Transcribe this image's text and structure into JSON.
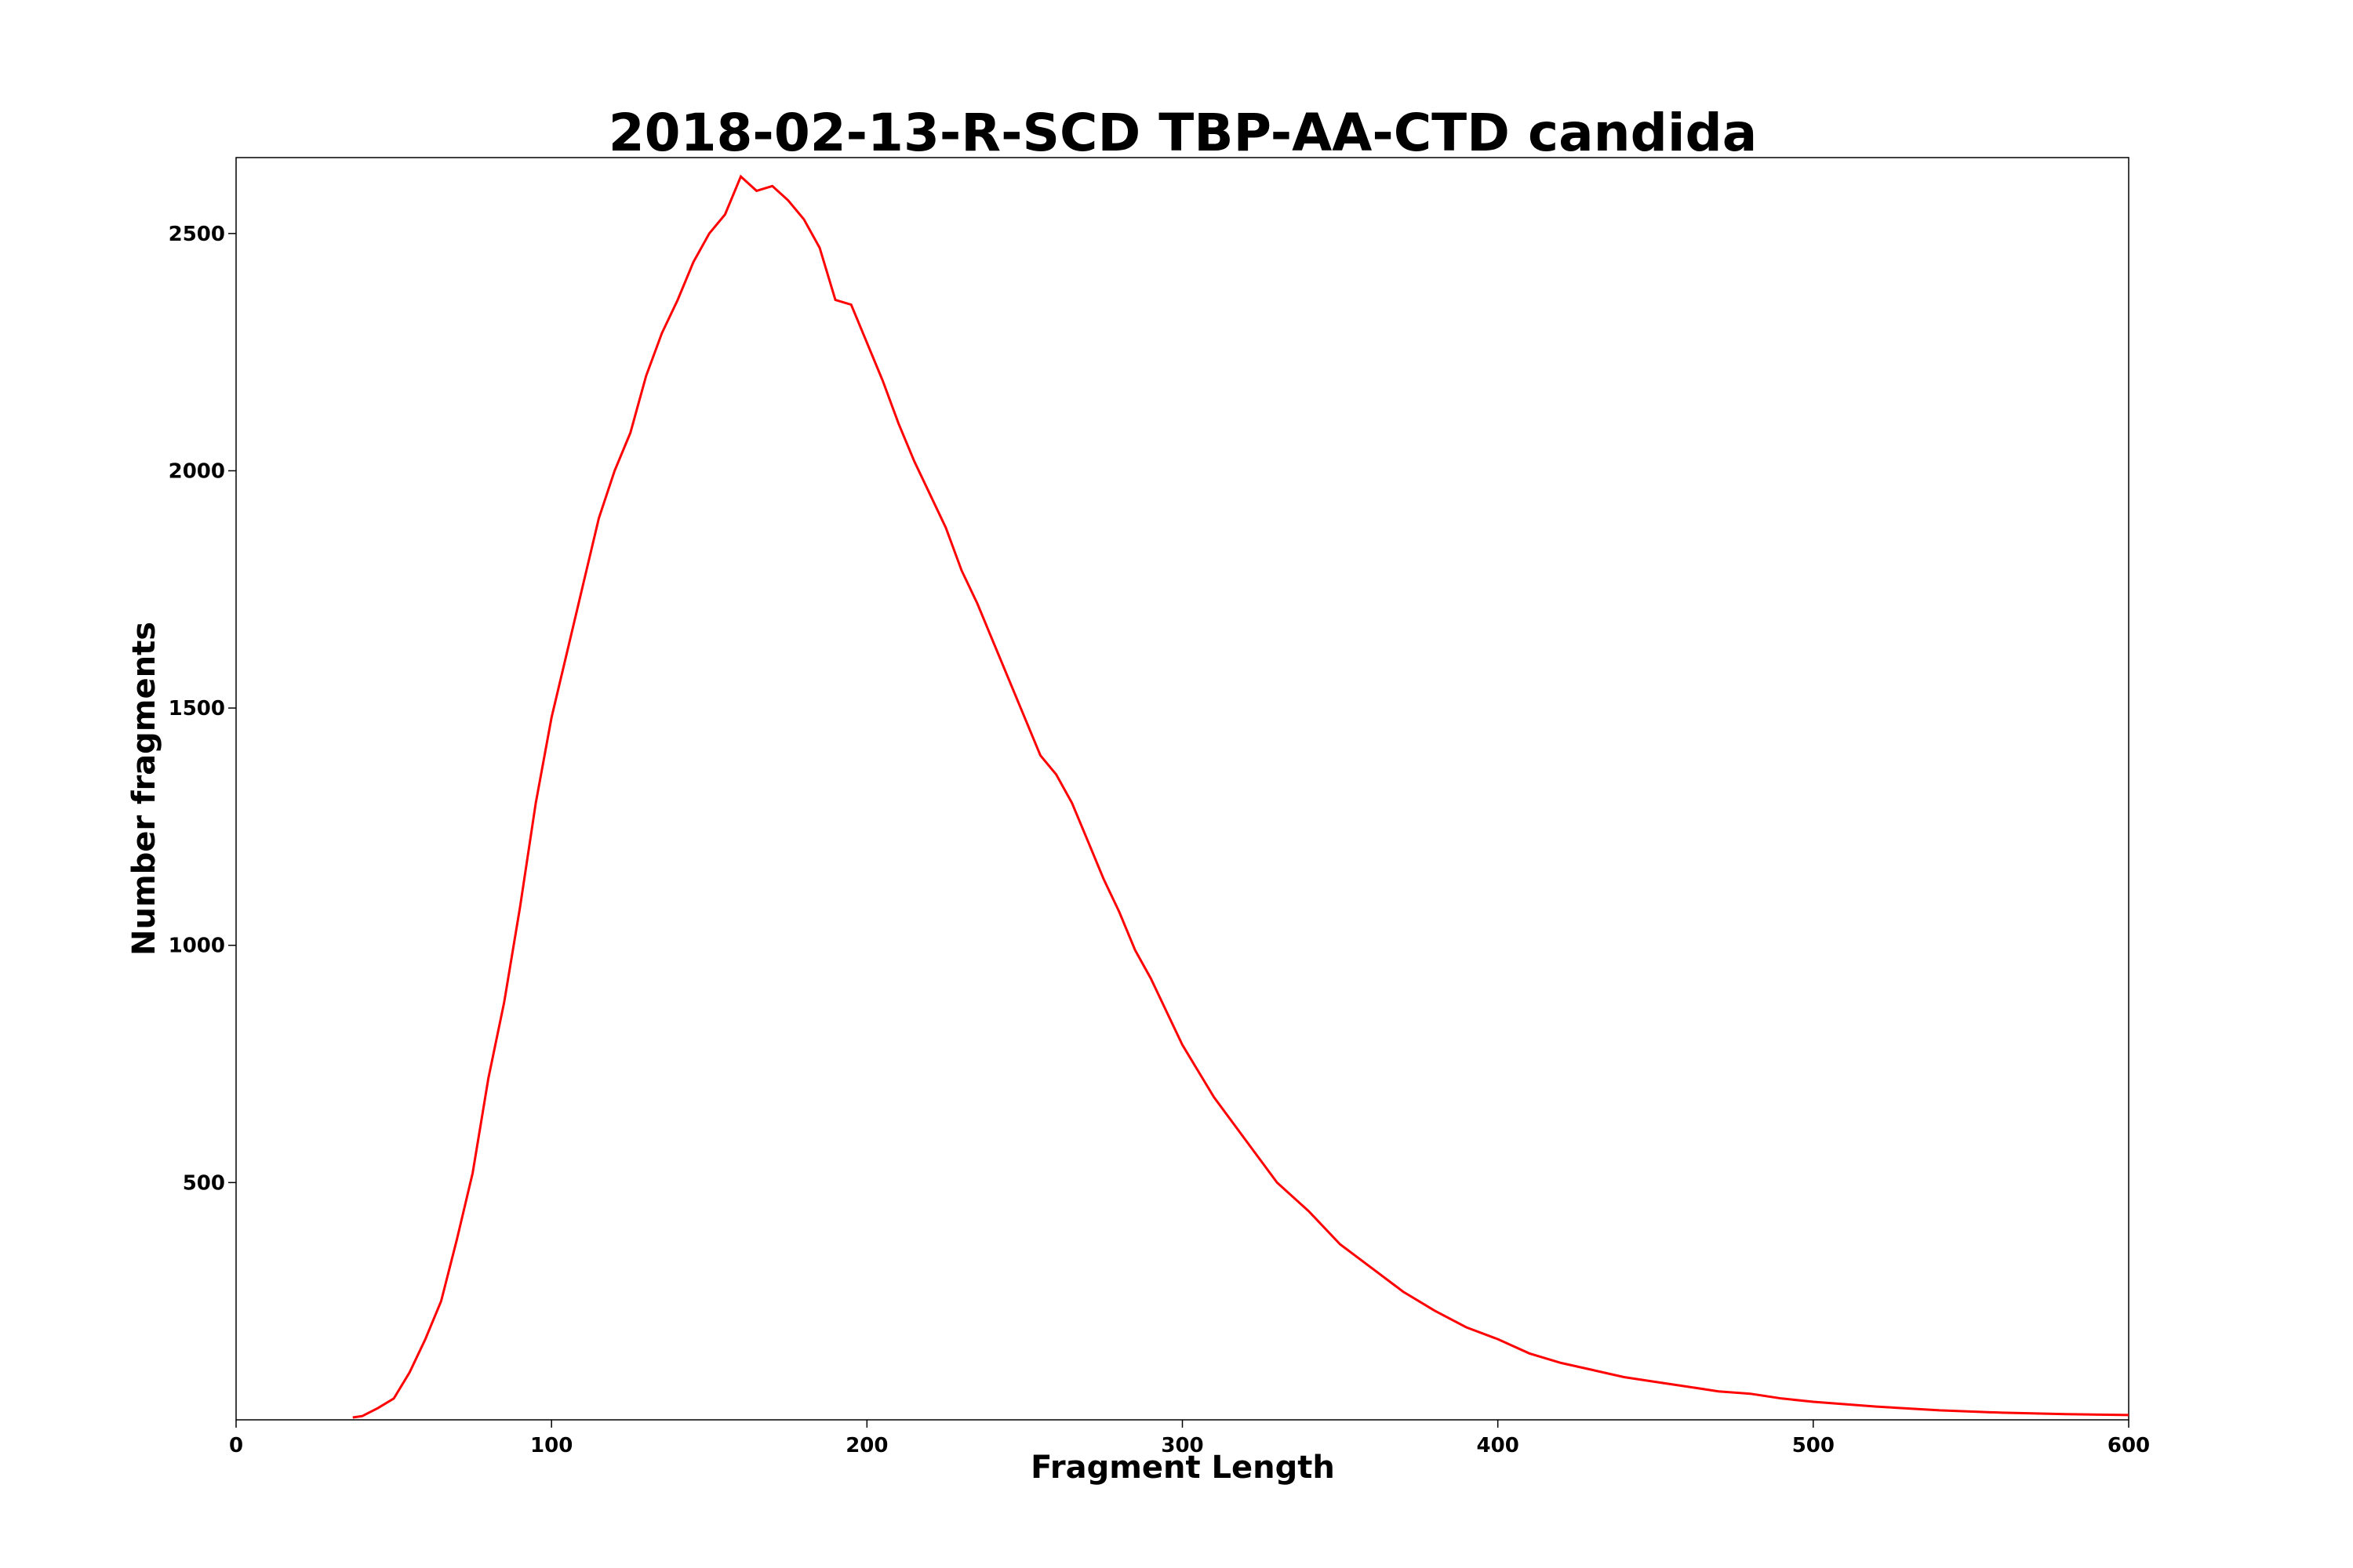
{
  "chart_data": {
    "type": "line",
    "title": "2018-02-13-R-SCD TBP-AA-CTD candida",
    "xlabel": "Fragment Length",
    "ylabel": "Number fragments",
    "xlim": [
      0,
      600
    ],
    "ylim": [
      0,
      2660
    ],
    "xticks": [
      0,
      100,
      200,
      300,
      400,
      500,
      600
    ],
    "yticks": [
      500,
      1000,
      1500,
      2000,
      2500
    ],
    "grid": false,
    "legend": "none",
    "series": [
      {
        "color": "#ff0000",
        "x": [
          37,
          40,
          45,
          50,
          55,
          60,
          65,
          70,
          75,
          80,
          85,
          90,
          95,
          100,
          105,
          110,
          115,
          120,
          125,
          130,
          135,
          140,
          145,
          150,
          155,
          160,
          165,
          170,
          175,
          180,
          185,
          190,
          195,
          200,
          205,
          210,
          215,
          220,
          225,
          230,
          235,
          240,
          245,
          250,
          255,
          260,
          265,
          270,
          275,
          280,
          285,
          290,
          295,
          300,
          310,
          320,
          330,
          340,
          350,
          360,
          370,
          380,
          390,
          400,
          410,
          420,
          430,
          440,
          450,
          460,
          470,
          480,
          490,
          500,
          520,
          540,
          560,
          580,
          600
        ],
        "y": [
          5,
          8,
          25,
          45,
          100,
          170,
          250,
          380,
          520,
          720,
          880,
          1080,
          1300,
          1480,
          1620,
          1760,
          1900,
          2000,
          2080,
          2200,
          2290,
          2360,
          2440,
          2500,
          2540,
          2620,
          2590,
          2600,
          2570,
          2530,
          2470,
          2360,
          2350,
          2270,
          2190,
          2100,
          2020,
          1950,
          1880,
          1790,
          1720,
          1640,
          1560,
          1480,
          1400,
          1360,
          1300,
          1220,
          1140,
          1070,
          990,
          930,
          860,
          790,
          680,
          590,
          500,
          440,
          370,
          320,
          270,
          230,
          195,
          170,
          140,
          120,
          105,
          90,
          80,
          70,
          60,
          55,
          45,
          38,
          28,
          20,
          15,
          12,
          10
        ]
      }
    ]
  }
}
